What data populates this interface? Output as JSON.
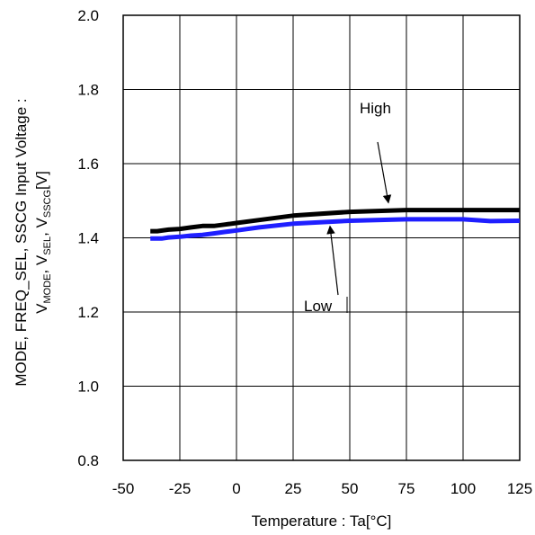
{
  "chart_data": {
    "type": "line",
    "xlabel": "Temperature : Ta[°C]",
    "ylabel": {
      "line1": "MODE, FREQ_SEL, SSCG Input Voltage :",
      "v1": "V",
      "s1": "MODE",
      "sep1": ", ",
      "v2": "V",
      "s2": "SEL",
      "sep2": ", ",
      "v3": "V",
      "s3": "SSCG",
      "unit": "[V]"
    },
    "xlim": [
      -50,
      125
    ],
    "ylim": [
      0.8,
      2.0
    ],
    "x_ticks": [
      -50,
      -25,
      0,
      25,
      50,
      75,
      100,
      125
    ],
    "x_tick_labels": [
      "-50",
      "-25",
      "0",
      "25",
      "50",
      "75",
      "100",
      "125"
    ],
    "y_ticks": [
      0.8,
      1.0,
      1.2,
      1.4,
      1.6,
      1.8,
      2.0
    ],
    "y_tick_labels": [
      "0.8",
      "1.0",
      "1.2",
      "1.4",
      "1.6",
      "1.8",
      "2.0"
    ],
    "grid": true,
    "series": [
      {
        "name": "High",
        "color": "#000000",
        "x": [
          -38,
          -35,
          -30,
          -25,
          -20,
          -15,
          -10,
          -5,
          0,
          10,
          25,
          50,
          75,
          100,
          125
        ],
        "y": [
          1.418,
          1.418,
          1.422,
          1.424,
          1.428,
          1.432,
          1.432,
          1.436,
          1.44,
          1.448,
          1.46,
          1.47,
          1.475,
          1.475,
          1.475
        ]
      },
      {
        "name": "Low",
        "color": "#1f1fff",
        "x": [
          -38,
          -33,
          -30,
          -25,
          -20,
          -15,
          -10,
          -5,
          0,
          10,
          25,
          50,
          75,
          100,
          112,
          125
        ],
        "y": [
          1.398,
          1.398,
          1.401,
          1.403,
          1.406,
          1.408,
          1.412,
          1.416,
          1.42,
          1.428,
          1.438,
          1.446,
          1.45,
          1.45,
          1.445,
          1.446
        ]
      }
    ],
    "annotations": [
      {
        "text": "High",
        "series": "High",
        "arrow_to": [
          75,
          1.475
        ]
      },
      {
        "text": "Low",
        "series": "Low",
        "arrow_to": [
          50,
          1.446
        ]
      }
    ]
  }
}
